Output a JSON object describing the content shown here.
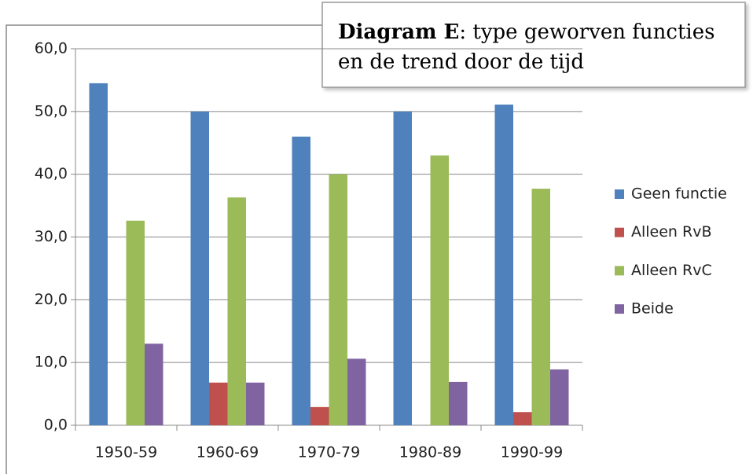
{
  "chart_data": {
    "type": "bar",
    "title_bold": "Diagram E",
    "title_lines": [
      ": type geworven functies",
      "en de trend door de tijd"
    ],
    "categories": [
      "1950-59",
      "1960-69",
      "1970-79",
      "1980-89",
      "1990-99"
    ],
    "series": [
      {
        "name": "Geen functie",
        "color": "#4f81bd",
        "values": [
          54.5,
          50.0,
          46.0,
          50.0,
          51.1
        ]
      },
      {
        "name": "Alleen RvB",
        "color": "#c0504d",
        "values": [
          0,
          6.8,
          2.9,
          0,
          2.1
        ]
      },
      {
        "name": "Alleen RvC",
        "color": "#9bbb59",
        "values": [
          32.6,
          36.3,
          40.0,
          43.0,
          37.7
        ]
      },
      {
        "name": "Beide",
        "color": "#8064a2",
        "values": [
          13.0,
          6.8,
          10.6,
          6.9,
          8.9
        ]
      }
    ],
    "ylim": [
      0,
      60
    ],
    "yticks": [
      {
        "value": 0,
        "label": "0,0"
      },
      {
        "value": 10,
        "label": "10,0"
      },
      {
        "value": 20,
        "label": "20,0"
      },
      {
        "value": 30,
        "label": "30,0"
      },
      {
        "value": 40,
        "label": "40,0"
      },
      {
        "value": 50,
        "label": "50,0"
      },
      {
        "value": 60,
        "label": "60,0"
      }
    ],
    "grid": true,
    "legend": "right"
  }
}
